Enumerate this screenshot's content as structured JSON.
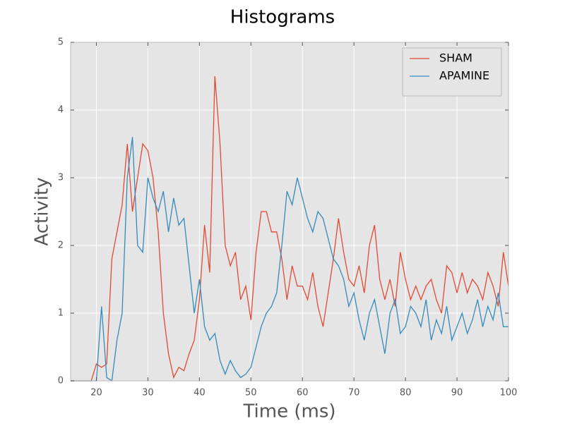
{
  "chart_data": {
    "type": "line",
    "title": "Histograms",
    "x_label": "Time (ms)",
    "y_label": "Activity",
    "x": [
      15,
      16,
      17,
      18,
      19,
      20,
      21,
      22,
      23,
      24,
      25,
      26,
      27,
      28,
      29,
      30,
      31,
      32,
      33,
      34,
      35,
      36,
      37,
      38,
      39,
      40,
      41,
      42,
      43,
      44,
      45,
      46,
      47,
      48,
      49,
      50,
      51,
      52,
      53,
      54,
      55,
      56,
      57,
      58,
      59,
      60,
      61,
      62,
      63,
      64,
      65,
      66,
      67,
      68,
      69,
      70,
      71,
      72,
      73,
      74,
      75,
      76,
      77,
      78,
      79,
      80,
      81,
      82,
      83,
      84,
      85,
      86,
      87,
      88,
      89,
      90,
      91,
      92,
      93,
      94,
      95,
      96,
      97,
      98,
      99,
      100
    ],
    "series": [
      {
        "name": "SHAM",
        "color": "#e24a33",
        "values": [
          0,
          0,
          0,
          0,
          0,
          0.25,
          0.2,
          0.25,
          1.8,
          2.2,
          2.6,
          3.5,
          2.5,
          3.0,
          3.5,
          3.4,
          3.0,
          2.2,
          1.0,
          0.4,
          0.05,
          0.2,
          0.15,
          0.4,
          0.6,
          1.2,
          2.3,
          1.6,
          4.5,
          3.5,
          2.0,
          1.7,
          1.9,
          1.2,
          1.4,
          0.9,
          1.9,
          2.5,
          2.5,
          2.2,
          2.2,
          1.8,
          1.2,
          1.7,
          1.4,
          1.4,
          1.2,
          1.6,
          1.1,
          0.8,
          1.3,
          1.8,
          2.4,
          1.9,
          1.5,
          1.4,
          1.7,
          1.3,
          2.0,
          2.3,
          1.5,
          1.2,
          1.5,
          1.1,
          1.9,
          1.5,
          1.2,
          1.4,
          1.2,
          1.4,
          1.5,
          1.2,
          1.0,
          1.7,
          1.6,
          1.3,
          1.6,
          1.3,
          1.5,
          1.4,
          1.2,
          1.6,
          1.4,
          1.1,
          1.9,
          1.4
        ]
      },
      {
        "name": "APAMINE",
        "color": "#348abd",
        "values": [
          0,
          0,
          0,
          0,
          0,
          0,
          1.1,
          0.05,
          0,
          0.6,
          1.0,
          3.0,
          3.6,
          2.0,
          1.9,
          3.0,
          2.7,
          2.5,
          2.8,
          2.2,
          2.7,
          2.3,
          2.4,
          1.7,
          1.0,
          1.5,
          0.8,
          0.6,
          0.7,
          0.3,
          0.1,
          0.3,
          0.15,
          0.05,
          0.1,
          0.2,
          0.5,
          0.8,
          1.0,
          1.1,
          1.3,
          2.0,
          2.8,
          2.6,
          3.0,
          2.7,
          2.4,
          2.2,
          2.5,
          2.4,
          2.1,
          1.8,
          1.7,
          1.5,
          1.1,
          1.3,
          0.9,
          0.6,
          1.0,
          1.2,
          0.8,
          0.4,
          1.0,
          1.2,
          0.7,
          0.8,
          1.1,
          1.0,
          0.8,
          1.2,
          0.6,
          0.9,
          0.7,
          1.1,
          0.6,
          0.8,
          1.0,
          0.7,
          0.9,
          1.2,
          0.8,
          1.1,
          0.9,
          1.3,
          0.8,
          0.8
        ]
      }
    ],
    "xlim": [
      15,
      100
    ],
    "ylim": [
      0,
      5
    ],
    "xticks": [
      20,
      30,
      40,
      50,
      60,
      70,
      80,
      90,
      100
    ],
    "yticks": [
      0,
      1,
      2,
      3,
      4,
      5
    ],
    "grid": true,
    "legend": "upper right"
  }
}
